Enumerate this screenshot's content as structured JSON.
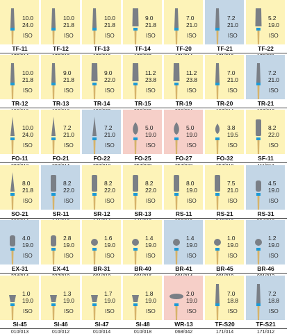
{
  "colors": {
    "yellow": "#fdf3b8",
    "blue": "#c3d6e6",
    "pink": "#f6cfc8",
    "bur_body": "#7a7f86",
    "bur_band": "#1c9ad6",
    "shank": "#d6b36a"
  },
  "rows": [
    [
      {
        "name": "TF-11",
        "code": "173/014",
        "d1": "10.0",
        "d2": "24.0",
        "iso": "ISO",
        "bg": "yellow",
        "shape": "taper"
      },
      {
        "name": "TF-12",
        "code": "173/016",
        "d1": "10.0",
        "d2": "21.8",
        "iso": "ISO",
        "bg": "yellow",
        "shape": "taper"
      },
      {
        "name": "TF-13",
        "code": "173/018",
        "d1": "10.0",
        "d2": "21.8",
        "iso": "ISO",
        "bg": "yellow",
        "shape": "taper"
      },
      {
        "name": "TF-14",
        "code": "172/023",
        "d1": "9.0",
        "d2": "21.8",
        "iso": "ISO",
        "bg": "yellow",
        "shape": "taperwide"
      },
      {
        "name": "TF-20",
        "code": "171/014",
        "d1": "7.0",
        "d2": "21.0",
        "iso": "ISO",
        "bg": "yellow",
        "shape": "taper"
      },
      {
        "name": "TF-21",
        "code": "171/016",
        "d1": "7.2",
        "d2": "21.0",
        "iso": "ISO",
        "bg": "blue",
        "shape": "taper"
      },
      {
        "name": "TF-22",
        "code": "170/021",
        "d1": "5.2",
        "d2": "19.0",
        "iso": "ISO",
        "bg": "yellow",
        "shape": "taperwide"
      }
    ],
    [
      {
        "name": "TR-12",
        "code": "199/016",
        "d1": "10.0",
        "d2": "21.8",
        "iso": "ISO",
        "bg": "yellow",
        "shape": "taper"
      },
      {
        "name": "TR-13",
        "code": "198/018",
        "d1": "9.0",
        "d2": "21.8",
        "iso": "ISO",
        "bg": "yellow",
        "shape": "taper"
      },
      {
        "name": "TR-14",
        "code": "198/022",
        "d1": "9.0",
        "d2": "22.0",
        "iso": "ISO",
        "bg": "yellow",
        "shape": "taperwide"
      },
      {
        "name": "TR-15",
        "code": "200/022",
        "d1": "11.2",
        "d2": "23.8",
        "iso": "ISO",
        "bg": "yellow",
        "shape": "taperwide"
      },
      {
        "name": "TR-19",
        "code": "200/024",
        "d1": "11.2",
        "d2": "23.8",
        "iso": "ISO",
        "bg": "yellow",
        "shape": "taperwide"
      },
      {
        "name": "TR-20",
        "code": "197/014",
        "d1": "7.0",
        "d2": "21.0",
        "iso": "ISO",
        "bg": "yellow",
        "shape": "taper"
      },
      {
        "name": "TR-21",
        "code": "197/016",
        "d1": "7.2",
        "d2": "21.0",
        "iso": "ISO",
        "bg": "blue",
        "shape": "taper"
      }
    ],
    [
      {
        "name": "FO-11",
        "code": "288/012",
        "d1": "10.0",
        "d2": "24.0",
        "iso": "ISO",
        "bg": "yellow",
        "shape": "needle"
      },
      {
        "name": "FO-21",
        "code": "298/014",
        "d1": "7.2",
        "d2": "21.0",
        "iso": "ISO",
        "bg": "yellow",
        "shape": "needle"
      },
      {
        "name": "FO-22",
        "code": "298/018",
        "d1": "7.2",
        "d2": "21.0",
        "iso": "ISO",
        "bg": "blue",
        "shape": "needle"
      },
      {
        "name": "FO-25",
        "code": "257/028",
        "d1": "5.0",
        "d2": "19.0",
        "iso": "ISO",
        "bg": "pink",
        "shape": "flame"
      },
      {
        "name": "FO-27",
        "code": "257/032",
        "d1": "5.0",
        "d2": "19.0",
        "iso": "ISO",
        "bg": "pink",
        "shape": "flame"
      },
      {
        "name": "FO-32",
        "code": "257/018",
        "d1": "3.8",
        "d2": "19.5",
        "iso": "ISO",
        "bg": "yellow",
        "shape": "flamesmall"
      },
      {
        "name": "SF-11",
        "code": "111/012",
        "d1": "8.2",
        "d2": "22.0",
        "iso": "ISO",
        "bg": "yellow",
        "shape": "cyl"
      }
    ],
    [
      {
        "name": "SO-21",
        "code": "289/014",
        "d1": "8.0",
        "d2": "21.8",
        "iso": "ISO",
        "bg": "yellow",
        "shape": "needle"
      },
      {
        "name": "SR-11",
        "code": "141/012",
        "d1": "8.2",
        "d2": "22.0",
        "iso": "ISO",
        "bg": "blue",
        "shape": "cyl"
      },
      {
        "name": "SR-12",
        "code": "141/014",
        "d1": "8.2",
        "d2": "22.0",
        "iso": "ISO",
        "bg": "yellow",
        "shape": "cyl"
      },
      {
        "name": "SR-13",
        "code": "141/018",
        "d1": "8.2",
        "d2": "22.0",
        "iso": "ISO",
        "bg": "yellow",
        "shape": "cyl"
      },
      {
        "name": "RS-11",
        "code": "853/019",
        "d1": "8.0",
        "d2": "19.0",
        "iso": "ISO",
        "bg": "yellow",
        "shape": "cyl"
      },
      {
        "name": "RS-21",
        "code": "545/018",
        "d1": "7.5",
        "d2": "21.0",
        "iso": "ISO",
        "bg": "yellow",
        "shape": "cyl"
      },
      {
        "name": "RS-31",
        "code": "554/018",
        "d1": "4.5",
        "d2": "19.0",
        "iso": "ISO",
        "bg": "blue",
        "shape": "cylshort"
      }
    ],
    [
      {
        "name": "EX-31",
        "code": "234/014",
        "d1": "4.0",
        "d2": "19.0",
        "iso": "ISO",
        "bg": "blue",
        "shape": "cylshort"
      },
      {
        "name": "EX-41",
        "code": "237/010",
        "d1": "2.8",
        "d2": "19.0",
        "iso": "ISO",
        "bg": "yellow",
        "shape": "cylshort"
      },
      {
        "name": "BR-31",
        "code": "001/018",
        "d1": "1.6",
        "d2": "19.0",
        "iso": "ISO",
        "bg": "yellow",
        "shape": "ball"
      },
      {
        "name": "BR-40",
        "code": "001/016",
        "d1": "1.4",
        "d2": "19.0",
        "iso": "ISO",
        "bg": "yellow",
        "shape": "ball"
      },
      {
        "name": "BR-41",
        "code": "001/014",
        "d1": "1.4",
        "d2": "19.0",
        "iso": "ISO",
        "bg": "blue",
        "shape": "ball"
      },
      {
        "name": "BR-45",
        "code": "001/010",
        "d1": "1.0",
        "d2": "19.0",
        "iso": "ISO",
        "bg": "yellow",
        "shape": "ball"
      },
      {
        "name": "BR-46",
        "code": "001/012",
        "d1": "1.2",
        "d2": "19.0",
        "iso": "ISO",
        "bg": "blue",
        "shape": "ball"
      }
    ],
    [
      {
        "name": "SI-45",
        "code": "010/013",
        "d1": "1.0",
        "d2": "19.0",
        "iso": "ISO",
        "bg": "yellow",
        "shape": "invcone"
      },
      {
        "name": "SI-46",
        "code": "010/012",
        "d1": "1.3",
        "d2": "19.0",
        "iso": "ISO",
        "bg": "yellow",
        "shape": "invcone"
      },
      {
        "name": "SI-47",
        "code": "010/014",
        "d1": "1.7",
        "d2": "19.0",
        "iso": "ISO",
        "bg": "yellow",
        "shape": "invcone"
      },
      {
        "name": "SI-48",
        "code": "010/018",
        "d1": "1.8",
        "d2": "19.0",
        "iso": "ISO",
        "bg": "yellow",
        "shape": "invcone"
      },
      {
        "name": "WR-13",
        "code": "068/042",
        "d1": "2.0",
        "d2": "19.0",
        "iso": "ISO",
        "bg": "pink",
        "shape": "wheel"
      },
      {
        "name": "TF-S20",
        "code": "171/014",
        "d1": "7.0",
        "d2": "18.8",
        "iso": "ISO",
        "bg": "yellow",
        "shape": "taper"
      },
      {
        "name": "TF-S21",
        "code": "171/012",
        "d1": "7.2",
        "d2": "18.8",
        "iso": "ISO",
        "bg": "blue",
        "shape": "taper"
      }
    ]
  ]
}
